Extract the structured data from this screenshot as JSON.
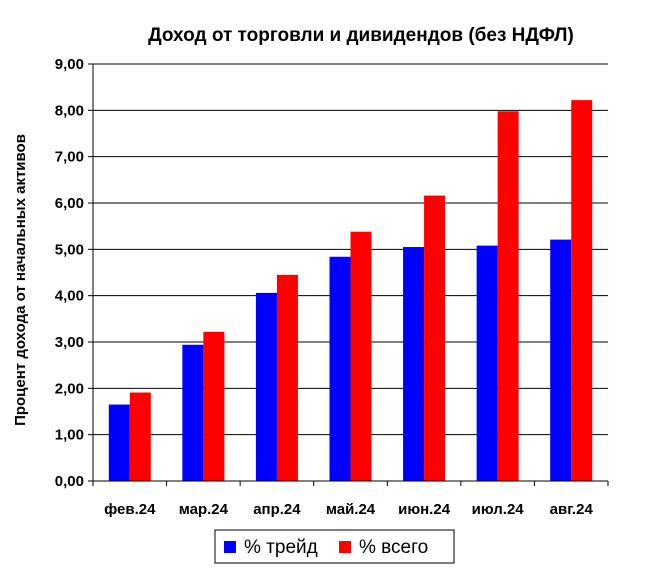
{
  "chart_data": {
    "type": "bar",
    "title": "Доход от торговли и дивидендов (без НДФЛ)",
    "xlabel": "",
    "ylabel": "Процент дохода от начальных активов",
    "ylim": [
      0,
      9
    ],
    "ytick_step": 1,
    "ytick_labels": [
      "0,00",
      "1,00",
      "2,00",
      "3,00",
      "4,00",
      "5,00",
      "6,00",
      "7,00",
      "8,00",
      "9,00"
    ],
    "categories": [
      "фев.24",
      "мар.24",
      "апр.24",
      "май.24",
      "июн.24",
      "июл.24",
      "авг.24"
    ],
    "series": [
      {
        "name": "% трейд",
        "color": "#0000ff",
        "values": [
          1.65,
          2.94,
          4.06,
          4.84,
          5.05,
          5.08,
          5.21
        ]
      },
      {
        "name": "% всего",
        "color": "#ff0000",
        "values": [
          1.91,
          3.22,
          4.45,
          5.38,
          6.16,
          7.98,
          8.22
        ]
      }
    ],
    "grid": true,
    "legend_position": "bottom"
  }
}
